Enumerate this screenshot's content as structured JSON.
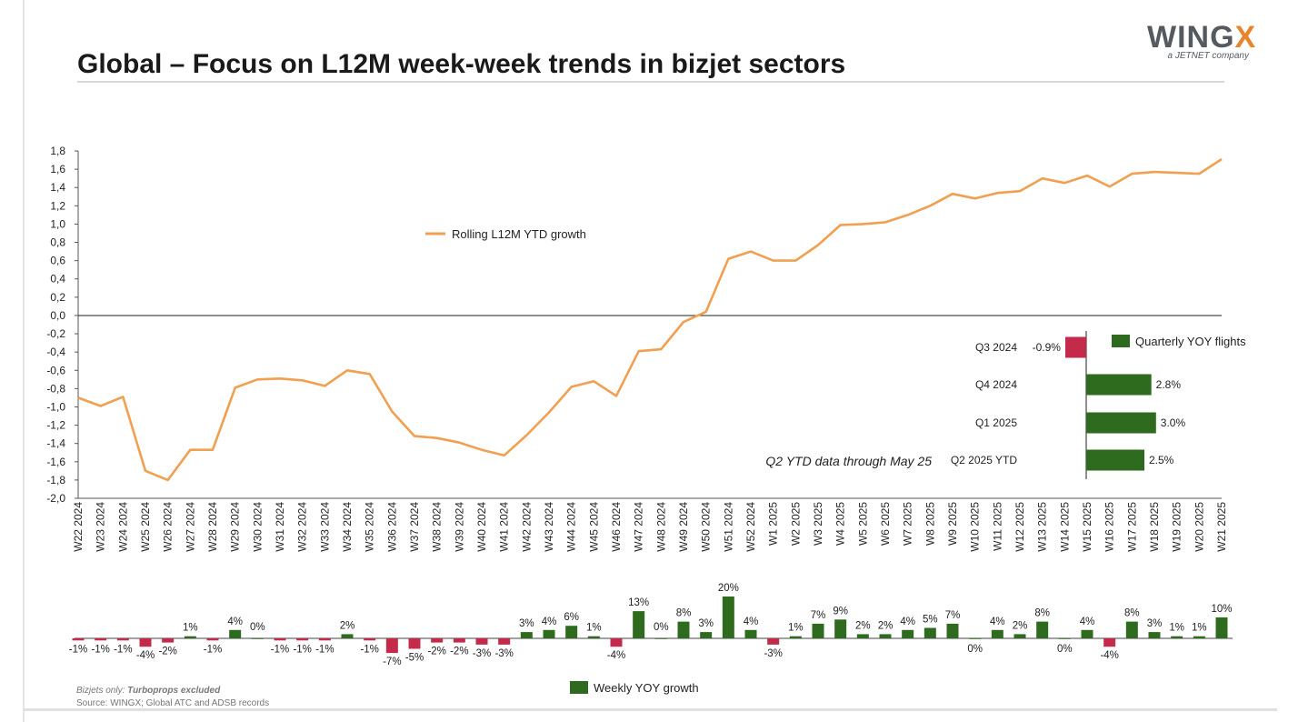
{
  "title": "Global – Focus on L12M week-week trends in bizjet sectors",
  "logo": {
    "main": "WING",
    "accent": "X",
    "sub": "a JETNET company"
  },
  "footnote": {
    "line1_prefix": "Bizjets only: ",
    "line1_bold": "Turboprops excluded",
    "line2": "Source: WINGX; Global ATC and ADSB records"
  },
  "colors": {
    "line": "#F0A050",
    "positive": "#2E6B1F",
    "negative": "#C42B4A"
  },
  "chart_data": [
    {
      "type": "line",
      "title": "",
      "series": [
        {
          "name": "Rolling L12M YTD growth",
          "values": [
            -0.9,
            -0.99,
            -0.89,
            -1.7,
            -1.8,
            -1.47,
            -1.47,
            -0.79,
            -0.7,
            -0.69,
            -0.71,
            -0.77,
            -0.6,
            -0.64,
            -1.05,
            -1.32,
            -1.34,
            -1.39,
            -1.47,
            -1.53,
            -1.31,
            -1.06,
            -0.78,
            -0.72,
            -0.88,
            -0.39,
            -0.37,
            -0.07,
            0.04,
            0.62,
            0.7,
            0.6,
            0.6,
            0.77,
            0.99,
            1.0,
            1.02,
            1.1,
            1.2,
            1.33,
            1.28,
            1.34,
            1.36,
            1.5,
            1.45,
            1.53,
            1.41,
            1.55,
            1.57,
            1.56,
            1.55,
            1.71
          ]
        }
      ],
      "categories": [
        "W22 2024",
        "W23 2024",
        "W24 2024",
        "W25 2024",
        "W26 2024",
        "W27 2024",
        "W28 2024",
        "W29 2024",
        "W30 2024",
        "W31 2024",
        "W32 2024",
        "W33 2024",
        "W34 2024",
        "W35 2024",
        "W36 2024",
        "W37 2024",
        "W38 2024",
        "W39 2024",
        "W40 2024",
        "W41 2024",
        "W42 2024",
        "W43 2024",
        "W44 2024",
        "W45 2024",
        "W46 2024",
        "W47 2024",
        "W48 2024",
        "W49 2024",
        "W50 2024",
        "W51 2024",
        "W52 2024",
        "W1 2025",
        "W2 2025",
        "W3 2025",
        "W4 2025",
        "W5 2025",
        "W6 2025",
        "W7 2025",
        "W8 2025",
        "W9 2025",
        "W10 2025",
        "W11 2025",
        "W12 2025",
        "W13 2025",
        "W14 2025",
        "W15 2025",
        "W16 2025",
        "W17 2025",
        "W18 2025",
        "W19 2025",
        "W20 2025",
        "W21 2025"
      ],
      "ylim": [
        -2.0,
        1.8
      ],
      "yticks": [
        "1,8",
        "1,6",
        "1,4",
        "1,2",
        "1,0",
        "0,8",
        "0,6",
        "0,4",
        "0,2",
        "0,0",
        "-0,2",
        "-0,4",
        "-0,6",
        "-0,8",
        "-1,0",
        "-1,2",
        "-1,4",
        "-1,6",
        "-1,8",
        "-2,0"
      ],
      "legend": "center-left"
    },
    {
      "type": "bar",
      "title": "",
      "series": [
        {
          "name": "Weekly YOY growth",
          "values": [
            -1,
            -1,
            -1,
            -4,
            -2,
            1,
            -1,
            4,
            0,
            -1,
            -1,
            -1,
            2,
            -1,
            -7,
            -5,
            -2,
            -2,
            -3,
            -3,
            3,
            4,
            6,
            1,
            -4,
            13,
            0,
            8,
            3,
            20,
            4,
            -3,
            1,
            7,
            9,
            2,
            2,
            4,
            5,
            7,
            0,
            4,
            2,
            8,
            0,
            4,
            -4,
            8,
            3,
            1,
            1,
            10
          ],
          "labels": [
            "-1%",
            "-1%",
            "-1%",
            "-4%",
            "-2%",
            "1%",
            "-1%",
            "4%",
            "0%",
            "-1%",
            "-1%",
            "-1%",
            "2%",
            "-1%",
            "-7%",
            "-5%",
            "-2%",
            "-2%",
            "-3%",
            "-3%",
            "3%",
            "4%",
            "6%",
            "1%",
            "-4%",
            "13%",
            "0%",
            "8%",
            "3%",
            "20%",
            "4%",
            "-3%",
            "1%",
            "7%",
            "9%",
            "2%",
            "2%",
            "4%",
            "5%",
            "7%",
            "0%",
            "4%",
            "2%",
            "8%",
            "0%",
            "4%",
            "-4%",
            "8%",
            "3%",
            "1%",
            "1%",
            "10%"
          ]
        }
      ],
      "legend": "bottom"
    },
    {
      "type": "bar",
      "orientation": "horizontal",
      "title": "",
      "categories": [
        "Q3 2024",
        "Q4 2024",
        "Q1 2025",
        "Q2 2025 YTD"
      ],
      "series": [
        {
          "name": "Quarterly YOY flights",
          "values": [
            -0.9,
            2.8,
            3.0,
            2.5
          ],
          "labels": [
            "-0.9%",
            "2.8%",
            "3.0%",
            "2.5%"
          ]
        }
      ],
      "annotation": "Q2 YTD data through May 25",
      "legend": "top-right"
    }
  ]
}
